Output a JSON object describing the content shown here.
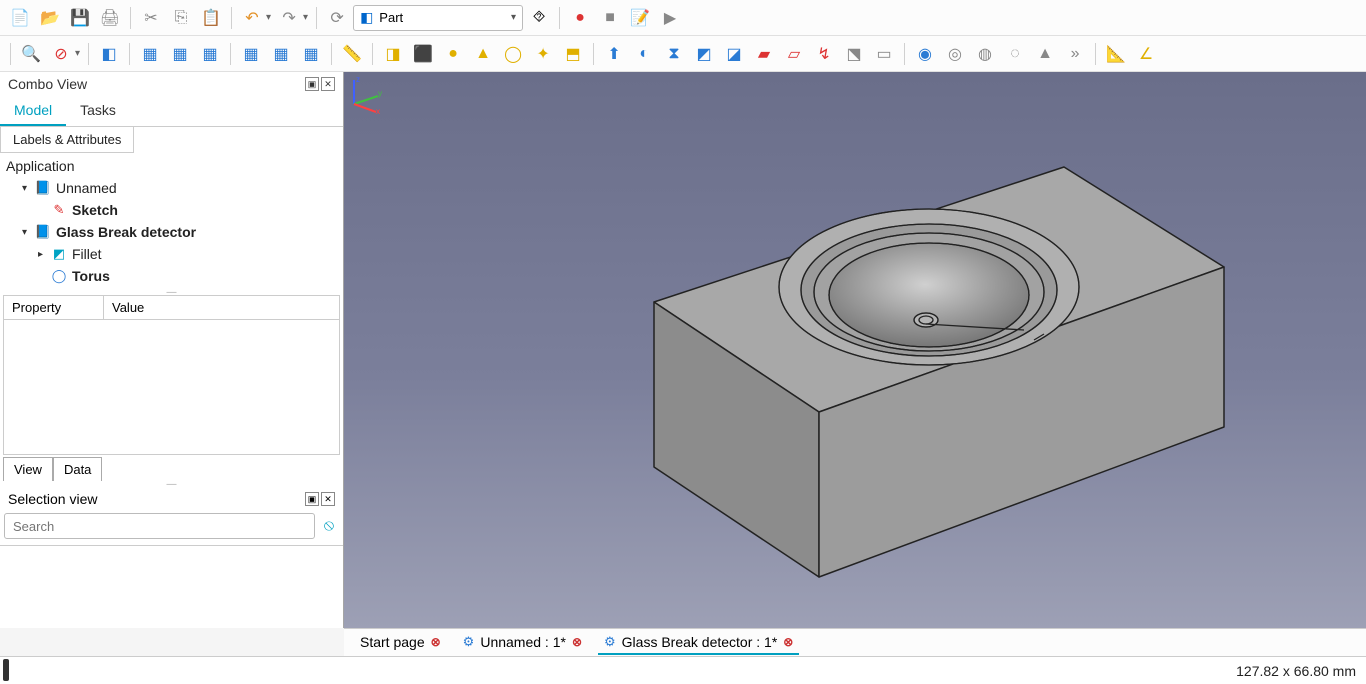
{
  "toolbar1": {
    "items": [
      {
        "name": "new-file-icon",
        "glyph": "📄",
        "cls": "c-yellow"
      },
      {
        "name": "open-file-icon",
        "glyph": "📂",
        "cls": "c-blue"
      },
      {
        "name": "save-icon",
        "glyph": "💾",
        "cls": "c-blue"
      },
      {
        "name": "print-icon",
        "glyph": "🖨",
        "cls": "c-gray"
      },
      {
        "sep": true
      },
      {
        "name": "cut-icon",
        "glyph": "✂",
        "cls": "c-gray"
      },
      {
        "name": "copy-icon",
        "glyph": "⎘",
        "cls": "c-gray"
      },
      {
        "name": "paste-icon",
        "glyph": "📋",
        "cls": "c-orange"
      },
      {
        "sep": true
      },
      {
        "name": "undo-icon",
        "glyph": "↶",
        "cls": "c-orange",
        "drop": true
      },
      {
        "name": "redo-icon",
        "glyph": "↷",
        "cls": "c-gray",
        "drop": true
      },
      {
        "sep": true
      },
      {
        "name": "refresh-icon",
        "glyph": "⟳",
        "cls": "c-gray"
      },
      {
        "workbench": true
      },
      {
        "name": "whats-this-icon",
        "glyph": "⯑",
        "cls": ""
      },
      {
        "sep": true
      },
      {
        "name": "record-macro-icon",
        "glyph": "●",
        "cls": "c-red"
      },
      {
        "name": "stop-macro-icon",
        "glyph": "■",
        "cls": "c-gray"
      },
      {
        "name": "macros-icon",
        "glyph": "📝",
        "cls": "c-orange"
      },
      {
        "name": "run-macro-icon",
        "glyph": "▶",
        "cls": "c-gray"
      }
    ],
    "workbench_label": "Part"
  },
  "toolbar2": {
    "items": [
      {
        "sep": true
      },
      {
        "name": "fit-all-icon",
        "glyph": "🔍",
        "cls": "c-blue"
      },
      {
        "name": "draw-style-icon",
        "glyph": "⊘",
        "cls": "c-red",
        "drop": true
      },
      {
        "sep": true
      },
      {
        "name": "iso-view-icon",
        "glyph": "◧",
        "cls": "c-blue"
      },
      {
        "sep": true
      },
      {
        "name": "front-view-icon",
        "glyph": "▦",
        "cls": "c-blue"
      },
      {
        "name": "top-view-icon",
        "glyph": "▦",
        "cls": "c-blue"
      },
      {
        "name": "right-view-icon",
        "glyph": "▦",
        "cls": "c-blue"
      },
      {
        "sep": true
      },
      {
        "name": "rear-view-icon",
        "glyph": "▦",
        "cls": "c-blue"
      },
      {
        "name": "bottom-view-icon",
        "glyph": "▦",
        "cls": "c-blue"
      },
      {
        "name": "left-view-icon",
        "glyph": "▦",
        "cls": "c-blue"
      },
      {
        "sep": true
      },
      {
        "name": "measure-icon",
        "glyph": "📏",
        "cls": ""
      },
      {
        "sep": true
      },
      {
        "name": "box-icon",
        "glyph": "◨",
        "cls": "c-yellow"
      },
      {
        "name": "cylinder-icon",
        "glyph": "⬛",
        "cls": "c-yellow"
      },
      {
        "name": "sphere-icon",
        "glyph": "●",
        "cls": "c-yellow"
      },
      {
        "name": "cone-icon",
        "glyph": "▲",
        "cls": "c-yellow"
      },
      {
        "name": "torus-icon",
        "glyph": "◯",
        "cls": "c-yellow"
      },
      {
        "name": "primitives-icon",
        "glyph": "✦",
        "cls": "c-yellow"
      },
      {
        "name": "shapebuilder-icon",
        "glyph": "⬒",
        "cls": "c-yellow"
      },
      {
        "sep": true
      },
      {
        "name": "extrude-icon",
        "glyph": "⬆",
        "cls": "c-blue"
      },
      {
        "name": "revolve-icon",
        "glyph": "◐",
        "cls": "c-blue"
      },
      {
        "name": "mirror-icon",
        "glyph": "⧗",
        "cls": "c-blue"
      },
      {
        "name": "fillet-icon",
        "glyph": "◩",
        "cls": "c-blue"
      },
      {
        "name": "chamfer-icon",
        "glyph": "◪",
        "cls": "c-blue"
      },
      {
        "name": "ruled-icon",
        "glyph": "▰",
        "cls": "c-red"
      },
      {
        "name": "loft-icon",
        "glyph": "▱",
        "cls": "c-red"
      },
      {
        "name": "sweep-icon",
        "glyph": "↯",
        "cls": "c-red"
      },
      {
        "name": "offset3d-icon",
        "glyph": "⬔",
        "cls": "c-gray"
      },
      {
        "name": "thickness-icon",
        "glyph": "▭",
        "cls": "c-gray"
      },
      {
        "sep": true
      },
      {
        "name": "boolean-icon",
        "glyph": "◉",
        "cls": "c-blue"
      },
      {
        "name": "cut-bool-icon",
        "glyph": "◎",
        "cls": "c-gray"
      },
      {
        "name": "union-icon",
        "glyph": "◍",
        "cls": "c-gray"
      },
      {
        "name": "intersect-icon",
        "glyph": "◌",
        "cls": "c-gray"
      },
      {
        "name": "compound-icon",
        "glyph": "▲",
        "cls": "c-gray"
      },
      {
        "name": "overflow-icon",
        "glyph": "»",
        "cls": "c-gray"
      },
      {
        "sep": true
      },
      {
        "name": "measure-linear-icon",
        "glyph": "📐",
        "cls": "c-yellow"
      },
      {
        "name": "measure-angular-icon",
        "glyph": "∠",
        "cls": "c-yellow"
      }
    ]
  },
  "combo": {
    "title": "Combo View",
    "tabs": [
      "Model",
      "Tasks"
    ],
    "active_tab": 0,
    "subtabs": [
      "Labels & Attributes"
    ],
    "root": "Application",
    "tree": [
      {
        "level": 1,
        "expanded": true,
        "icon": "📘",
        "icon_cls": "c-blue",
        "label": "Unnamed",
        "bold": false
      },
      {
        "level": 2,
        "expanded": null,
        "icon": "✎",
        "icon_cls": "c-red",
        "label": "Sketch",
        "bold": true
      },
      {
        "level": 1,
        "expanded": true,
        "icon": "📘",
        "icon_cls": "c-blue",
        "label": "Glass Break detector",
        "bold": true
      },
      {
        "level": 2,
        "expanded": false,
        "icon": "◩",
        "icon_cls": "c-cyan",
        "label": "Fillet",
        "bold": false
      },
      {
        "level": 2,
        "expanded": null,
        "icon": "◯",
        "icon_cls": "c-blue",
        "label": "Torus",
        "bold": true
      }
    ],
    "prop_headers": [
      "Property",
      "Value"
    ],
    "bottom_tabs": [
      "View",
      "Data"
    ]
  },
  "selection_view": {
    "title": "Selection view",
    "search_placeholder": "Search"
  },
  "doc_tabs": {
    "items": [
      {
        "label": "Start page",
        "icon": "",
        "active": false
      },
      {
        "label": "Unnamed : 1*",
        "icon": "⚙",
        "active": false
      },
      {
        "label": "Glass Break detector : 1*",
        "icon": "⚙",
        "active": true
      }
    ]
  },
  "status": {
    "dimensions": "127.82 x 66.80  mm"
  },
  "viewport": {
    "bg_top": "#6a6e8a",
    "bg_bottom": "#9da0b5",
    "model_fill": "#9a9a9a",
    "model_stroke": "#222222",
    "axis": {
      "x": "#ff4040",
      "y": "#40c040",
      "z": "#4060ff"
    }
  }
}
